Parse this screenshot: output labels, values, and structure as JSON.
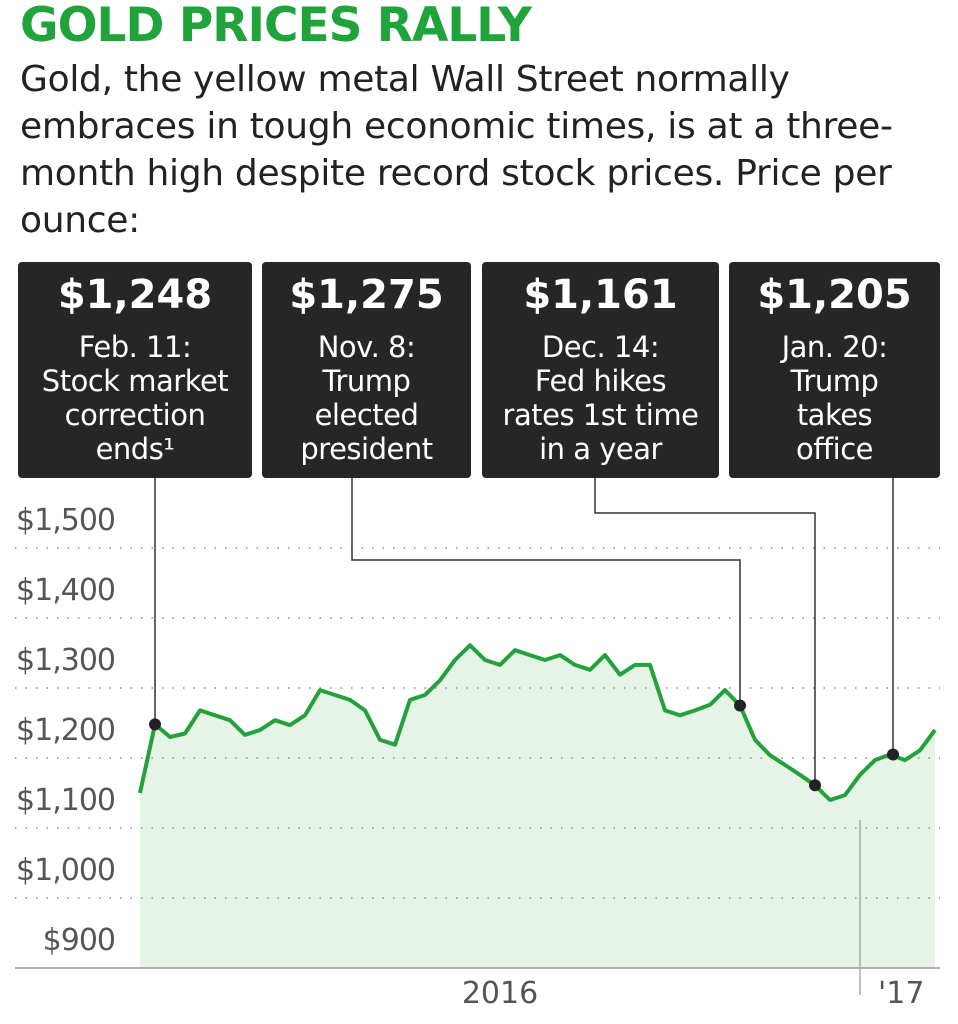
{
  "chart_data": {
    "type": "line",
    "title": "GOLD PRICES RALLY",
    "subtitle": "Gold, the yellow metal Wall Street normally embraces in tough economic times, is at a three-month high despite record stock prices. Price per ounce:",
    "color": "#23a13a",
    "area_color": "#e5f4e7",
    "grid": true,
    "ylim": [
      900,
      1500
    ],
    "yticks": [
      {
        "value": 900,
        "label": "$900"
      },
      {
        "value": 1000,
        "label": "$1,000"
      },
      {
        "value": 1100,
        "label": "$1,100"
      },
      {
        "value": 1200,
        "label": "$1,200"
      },
      {
        "value": 1300,
        "label": "$1,300"
      },
      {
        "value": 1400,
        "label": "$1,400"
      },
      {
        "value": 1500,
        "label": "$1,500"
      }
    ],
    "categories": [
      null,
      null,
      null,
      null,
      null,
      null,
      null,
      null,
      null,
      null,
      null,
      null,
      null,
      null,
      null,
      null,
      null,
      null,
      null,
      null,
      null,
      null,
      null,
      null,
      "2016",
      null,
      null,
      null,
      null,
      null,
      null,
      null,
      null,
      null,
      null,
      null,
      null,
      null,
      null,
      null,
      null,
      null,
      null,
      null,
      null,
      null,
      null,
      null,
      "'17",
      null,
      null,
      null,
      null,
      null
    ],
    "values": [
      1150,
      1248,
      1230,
      1235,
      1268,
      1261,
      1254,
      1233,
      1240,
      1254,
      1247,
      1261,
      1297,
      1290,
      1283,
      1268,
      1226,
      1219,
      1283,
      1290,
      1311,
      1340,
      1361,
      1340,
      1333,
      1354,
      1347,
      1340,
      1347,
      1333,
      1326,
      1347,
      1319,
      1333,
      1333,
      1268,
      1261,
      1268,
      1276,
      1297,
      1275,
      1226,
      1204,
      1190,
      1176,
      1161,
      1140,
      1147,
      1176,
      1197,
      1205,
      1197,
      1211,
      1240
    ],
    "annotations": [
      {
        "value": 1248,
        "label": "$1,248",
        "lines": [
          "Feb. 11:",
          "Stock market",
          "correction",
          "ends¹"
        ]
      },
      {
        "value": 1275,
        "label": "$1,275",
        "lines": [
          "Nov. 8:",
          "Trump",
          "elected",
          "president"
        ]
      },
      {
        "value": 1161,
        "label": "$1,161",
        "lines": [
          "Dec. 14:",
          "Fed hikes",
          "rates 1st time",
          "in a year"
        ]
      },
      {
        "value": 1205,
        "label": "$1,205",
        "lines": [
          "Jan. 20:",
          "Trump",
          "takes",
          "office"
        ]
      }
    ]
  }
}
